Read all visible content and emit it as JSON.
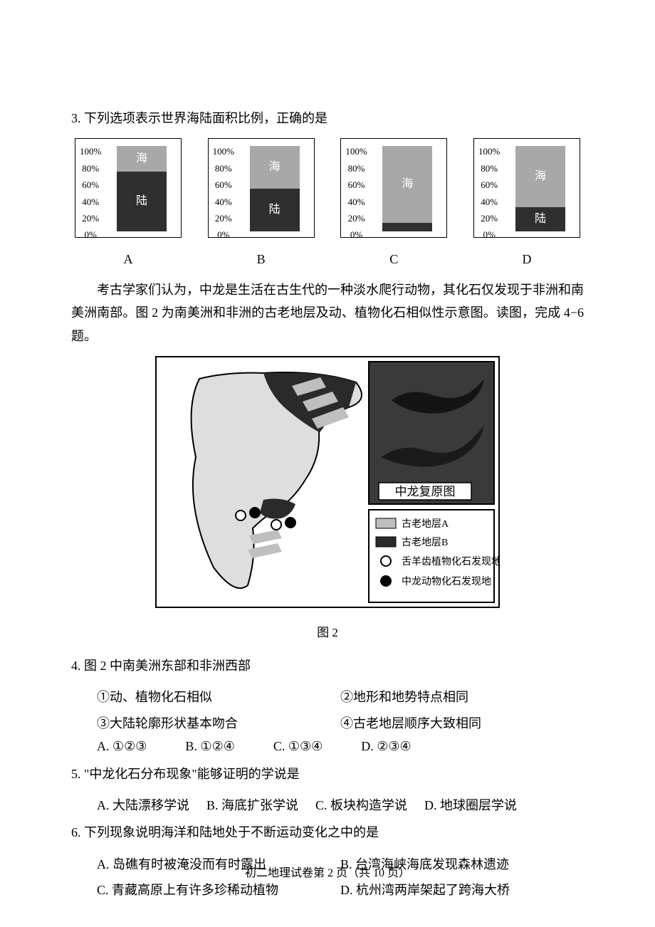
{
  "q3": {
    "stem": "3. 下列选项表示世界海陆面积比例，正确的是",
    "yticks": [
      "100%",
      "80%",
      "60%",
      "40%",
      "20%",
      "0%"
    ],
    "seg_sea_label": "海",
    "seg_land_label": "陆",
    "sea_color": "#a8a8a8",
    "land_color": "#2f2f2f",
    "bg_color": "#ffffff",
    "charts": [
      {
        "letter": "A",
        "sea_pct": 30,
        "land_pct": 70
      },
      {
        "letter": "B",
        "sea_pct": 50,
        "land_pct": 50
      },
      {
        "letter": "C",
        "sea_pct": 90,
        "land_pct": 10
      },
      {
        "letter": "D",
        "sea_pct": 71,
        "land_pct": 29
      }
    ]
  },
  "passage1": {
    "para": "考古学家们认为，中龙是生活在古生代的一种淡水爬行动物，其化石仅发现于非洲和南美洲南部。图 2 为南美洲和非洲的古老地层及动、植物化石相似性示意图。读图，完成 4−6 题。",
    "fig_caption": "图 2",
    "inset_title": "中龙复原图",
    "legend": {
      "stratumA": "古老地层A",
      "stratumB": "古老地层B",
      "plant": "舌羊齿植物化石发现地",
      "animal": "中龙动物化石发现地"
    },
    "colors": {
      "frame": "#000000",
      "land_fill": "#dedede",
      "stratumA_fill": "#bfbfbf",
      "stratumB_fill": "#2a2a2a",
      "marker_ring": "#000000",
      "marker_fill_white": "#ffffff",
      "marker_fill_black": "#000000",
      "inset_bg": "#3a3a3a",
      "inset_label_bg": "#ffffff",
      "legend_bg": "#ffffff"
    }
  },
  "q4": {
    "stem": "4. 图 2 中南美洲东部和非洲西部",
    "items": {
      "i1": "①动、植物化石相似",
      "i2": "②地形和地势特点相同",
      "i3": "③大陆轮廓形状基本吻合",
      "i4": "④古老地层顺序大致相同"
    },
    "opts": {
      "A": "A. ①②③",
      "B": "B. ①②④",
      "C": "C. ①③④",
      "D": "D. ②③④"
    }
  },
  "q5": {
    "stem": "5. \"中龙化石分布现象\"能够证明的学说是",
    "opts": {
      "A": "A. 大陆漂移学说",
      "B": "B. 海底扩张学说",
      "C": "C. 板块构造学说",
      "D": "D. 地球圈层学说"
    }
  },
  "q6": {
    "stem": "6. 下列现象说明海洋和陆地处于不断运动变化之中的是",
    "opts": {
      "A": "A. 岛礁有时被淹没而有时露出",
      "B": "B. 台湾海峡海底发现森林遗迹",
      "C": "C. 青藏高原上有许多珍稀动植物",
      "D": "D. 杭州湾两岸架起了跨海大桥"
    }
  },
  "footer": "初二地理试卷第 2 页（共 10 页）"
}
